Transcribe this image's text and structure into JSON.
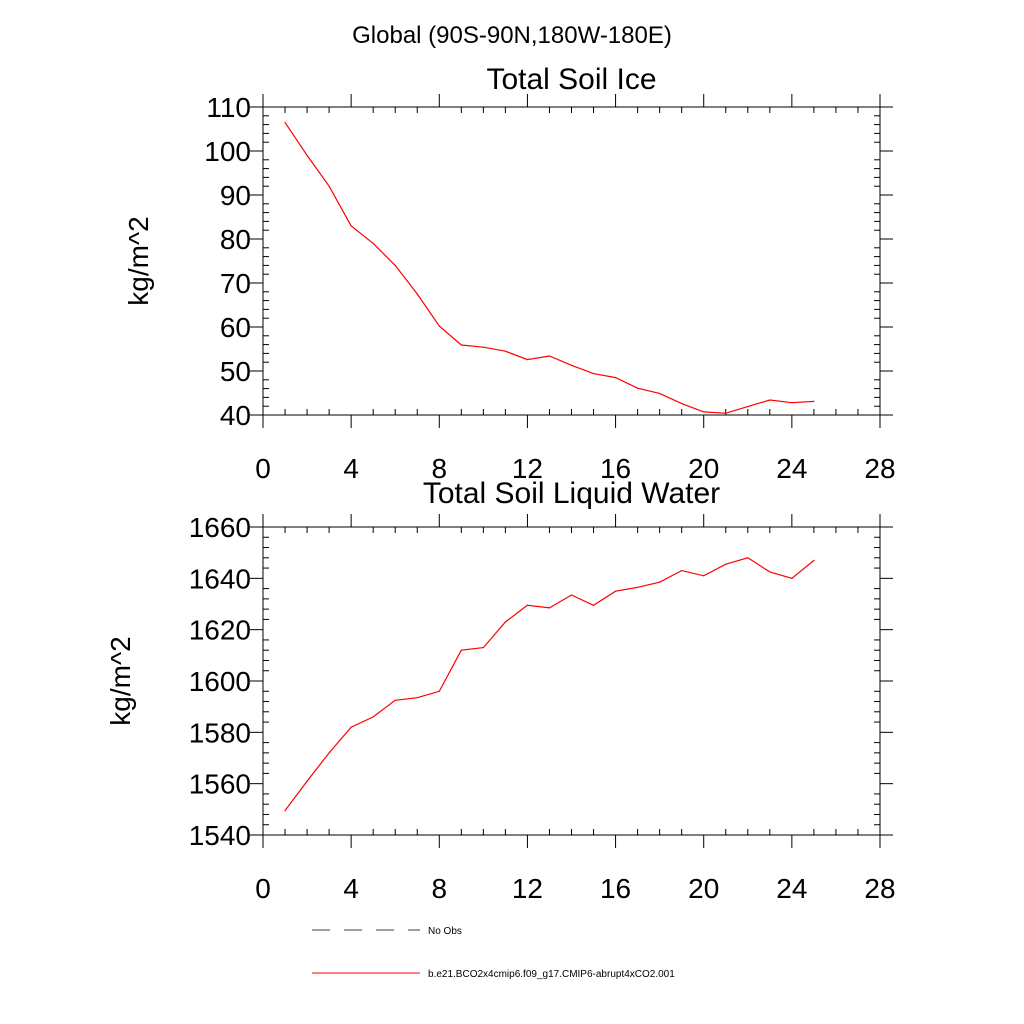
{
  "page_title": "Global (90S-90N,180W-180E)",
  "legend": {
    "entries": [
      {
        "label": "No Obs",
        "color": "#3a3a5a",
        "style": "dashed"
      },
      {
        "label": "b.e21.BCO2x4cmip6.f09_g17.CMIP6-abrupt4xCO2.001",
        "color": "#ff0000",
        "style": "solid"
      }
    ]
  },
  "chart_data": [
    {
      "type": "line",
      "title": "Total Soil Ice",
      "xlabel": "",
      "ylabel": "kg/m^2",
      "xlim": [
        0,
        28
      ],
      "ylim": [
        40,
        110
      ],
      "xticks": [
        0,
        4,
        8,
        12,
        16,
        20,
        24,
        28
      ],
      "yticks": [
        40,
        50,
        60,
        70,
        80,
        90,
        100,
        110
      ],
      "xtick_labels": [
        "0",
        "4",
        "8",
        "12",
        "16",
        "20",
        "24",
        "28"
      ],
      "ytick_labels": [
        "40",
        "50",
        "60",
        "70",
        "80",
        "90",
        "100",
        "110"
      ],
      "x_minor_step": 1,
      "y_minor_step": 2,
      "grid": false,
      "series": [
        {
          "name": "b.e21.BCO2x4cmip6.f09_g17.CMIP6-abrupt4xCO2.001",
          "color": "#ff0000",
          "x": [
            1,
            2,
            3,
            4,
            5,
            6,
            7,
            8,
            9,
            10,
            11,
            12,
            13,
            14,
            15,
            16,
            17,
            18,
            19,
            20,
            21,
            22,
            23,
            24,
            25
          ],
          "values": [
            106.5,
            99.0,
            92.0,
            83.0,
            79.0,
            74.0,
            67.5,
            60.2,
            55.9,
            55.4,
            54.5,
            52.6,
            53.4,
            51.3,
            49.4,
            48.5,
            46.1,
            44.9,
            42.6,
            40.7,
            40.4,
            41.9,
            43.4,
            42.8,
            43.1
          ]
        }
      ]
    },
    {
      "type": "line",
      "title": "Total Soil Liquid Water",
      "xlabel": "",
      "ylabel": "kg/m^2",
      "xlim": [
        0,
        28
      ],
      "ylim": [
        1540,
        1660
      ],
      "xticks": [
        0,
        4,
        8,
        12,
        16,
        20,
        24,
        28
      ],
      "yticks": [
        1540,
        1560,
        1580,
        1600,
        1620,
        1640,
        1660
      ],
      "xtick_labels": [
        "0",
        "4",
        "8",
        "12",
        "16",
        "20",
        "24",
        "28"
      ],
      "ytick_labels": [
        "1540",
        "1560",
        "1580",
        "1600",
        "1620",
        "1640",
        "1660"
      ],
      "x_minor_step": 1,
      "y_minor_step": 4,
      "grid": false,
      "series": [
        {
          "name": "b.e21.BCO2x4cmip6.f09_g17.CMIP6-abrupt4xCO2.001",
          "color": "#ff0000",
          "x": [
            1,
            2,
            3,
            4,
            5,
            6,
            7,
            8,
            9,
            10,
            11,
            12,
            13,
            14,
            15,
            16,
            17,
            18,
            19,
            20,
            21,
            22,
            23,
            24,
            25
          ],
          "values": [
            1549.5,
            1561.0,
            1572.0,
            1582.0,
            1586.0,
            1592.5,
            1593.5,
            1596.0,
            1612.0,
            1613.0,
            1623.0,
            1629.5,
            1628.5,
            1633.5,
            1629.5,
            1635.0,
            1636.5,
            1638.5,
            1643.0,
            1641.0,
            1645.5,
            1648.0,
            1642.5,
            1640.0,
            1647.0
          ]
        }
      ]
    }
  ]
}
